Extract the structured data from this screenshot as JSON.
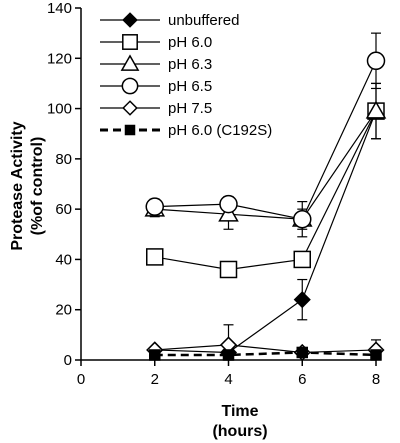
{
  "chart_data": {
    "type": "line",
    "title": "",
    "xlabel": [
      "Time",
      "(hours)"
    ],
    "ylabel": [
      "Protease Activity",
      "(%of control)"
    ],
    "xlim": [
      0,
      8
    ],
    "ylim": [
      0,
      140
    ],
    "xticks": [
      0,
      2,
      4,
      6,
      8
    ],
    "yticks": [
      0,
      20,
      40,
      60,
      80,
      100,
      120,
      140
    ],
    "grid": false,
    "legend_position": "top-left",
    "series": [
      {
        "name": "unbuffered",
        "marker": "diamond",
        "fill": "#000000",
        "line": "solid",
        "x": [
          2,
          4,
          6,
          8
        ],
        "y": [
          4,
          3,
          24,
          99
        ],
        "err": [
          1,
          1,
          8,
          0
        ]
      },
      {
        "name": "pH 6.0",
        "marker": "square",
        "fill": "#ffffff",
        "line": "solid",
        "x": [
          2,
          4,
          6,
          8
        ],
        "y": [
          41,
          36,
          40,
          99
        ],
        "err": [
          0,
          0,
          3,
          11
        ]
      },
      {
        "name": "pH 6.3",
        "marker": "triangle",
        "fill": "#ffffff",
        "line": "solid",
        "x": [
          2,
          4,
          6,
          8
        ],
        "y": [
          60,
          58,
          56,
          99
        ],
        "err": [
          3,
          6,
          4,
          11
        ]
      },
      {
        "name": "pH 6.5",
        "marker": "circle",
        "fill": "#ffffff",
        "line": "solid",
        "x": [
          2,
          4,
          6,
          8
        ],
        "y": [
          61,
          62,
          56,
          119
        ],
        "err": [
          3,
          3,
          7,
          11
        ]
      },
      {
        "name": "pH 7.5",
        "marker": "diamond",
        "fill": "#ffffff",
        "line": "solid",
        "x": [
          2,
          4,
          6,
          8
        ],
        "y": [
          4,
          6,
          3,
          4
        ],
        "err": [
          1,
          8,
          1,
          4
        ]
      },
      {
        "name": "pH 6.0 (C192S)",
        "marker": "square",
        "fill": "#000000",
        "line": "dashed",
        "x": [
          2,
          4,
          6,
          8
        ],
        "y": [
          2,
          2,
          3,
          2
        ],
        "err": [
          0,
          0,
          0,
          0
        ]
      }
    ]
  }
}
